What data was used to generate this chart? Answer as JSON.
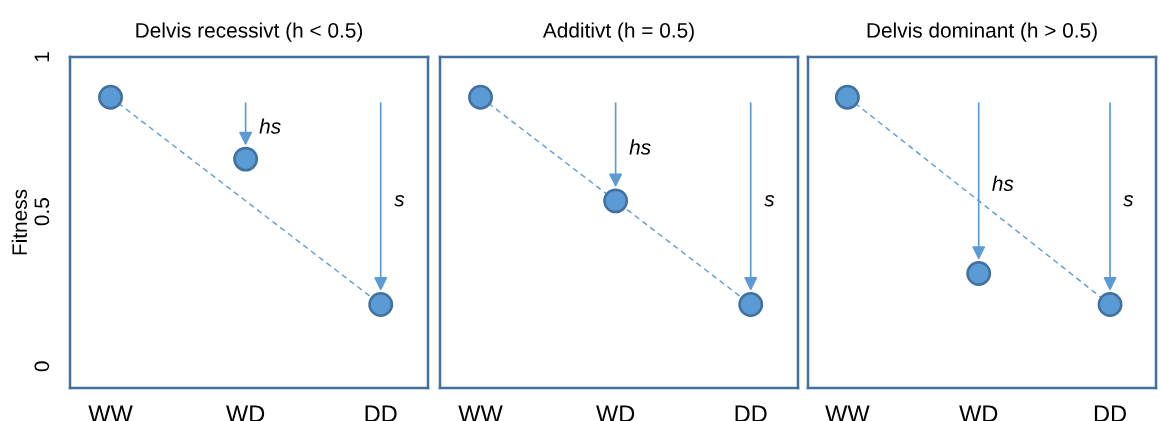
{
  "chart_data": [
    {
      "type": "scatter",
      "title": "Delvis recessivt (h < 0.5)",
      "ylabel": "Fitness",
      "categories": [
        "WW",
        "WD",
        "DD"
      ],
      "ylim": [
        -0.07,
        1
      ],
      "yticks": [
        0,
        0.5,
        1
      ],
      "tick_labels": "xy",
      "grid": false,
      "legend": false,
      "series": [
        {
          "color": "#5b9bd5",
          "marker": "circle",
          "values": [
            0.87,
            0.67,
            0.2
          ]
        },
        {
          "type": "line",
          "color": "#5b9bd5",
          "line_style": "dashed",
          "values": [
            0.87,
            null,
            0.2
          ]
        }
      ],
      "annotations": [
        "hs",
        "s"
      ]
    },
    {
      "type": "scatter",
      "title": "Additivt (h = 0.5)",
      "categories": [
        "WW",
        "WD",
        "DD"
      ],
      "ylim": [
        -0.07,
        1
      ],
      "yticks": [
        0,
        0.5,
        1
      ],
      "tick_labels": "x",
      "grid": false,
      "legend": false,
      "series": [
        {
          "color": "#5b9bd5",
          "marker": "circle",
          "values": [
            0.87,
            0.535,
            0.2
          ]
        },
        {
          "type": "line",
          "color": "#5b9bd5",
          "line_style": "dashed",
          "values": [
            0.87,
            null,
            0.2
          ]
        }
      ],
      "annotations": [
        "hs",
        "s"
      ]
    },
    {
      "type": "scatter",
      "title": "Delvis dominant (h > 0.5)",
      "categories": [
        "WW",
        "WD",
        "DD"
      ],
      "ylim": [
        -0.07,
        1
      ],
      "yticks": [
        0,
        0.5,
        1
      ],
      "tick_labels": "x",
      "grid": false,
      "legend": false,
      "series": [
        {
          "color": "#5b9bd5",
          "marker": "circle",
          "values": [
            0.87,
            0.3,
            0.2
          ]
        },
        {
          "type": "line",
          "color": "#5b9bd5",
          "line_style": "dashed",
          "values": [
            0.87,
            null,
            0.2
          ]
        }
      ],
      "annotations": [
        "hs",
        "s"
      ]
    }
  ]
}
